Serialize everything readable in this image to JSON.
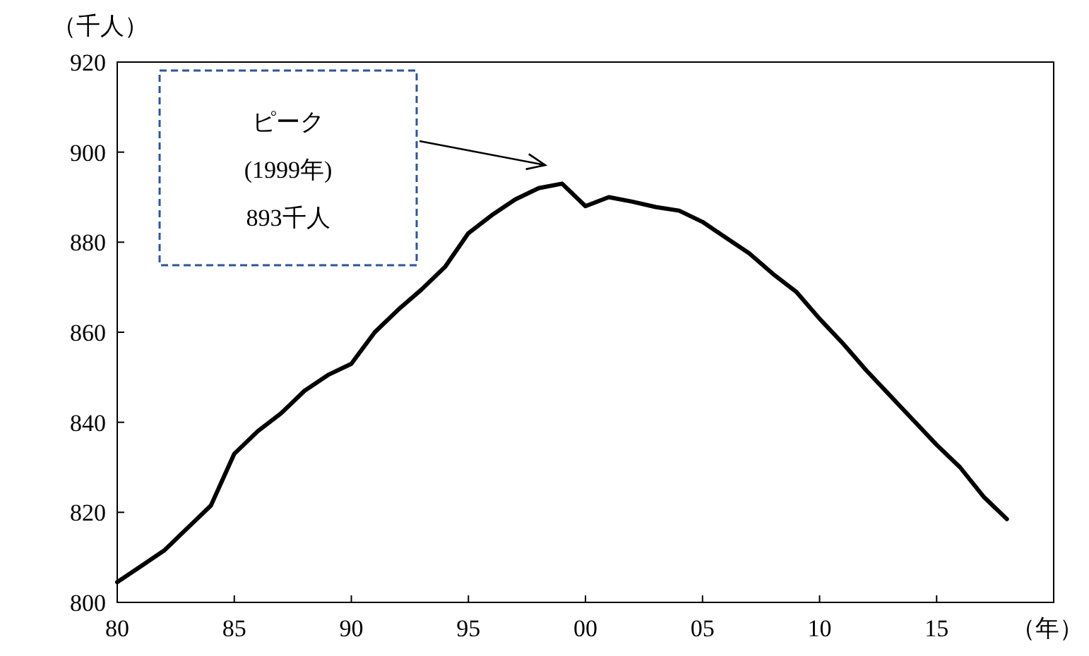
{
  "chart_data": {
    "type": "line",
    "ylabel": "（千人）",
    "xlabel": "（年）",
    "x": [
      1980,
      1981,
      1982,
      1983,
      1984,
      1985,
      1986,
      1987,
      1988,
      1989,
      1990,
      1991,
      1992,
      1993,
      1994,
      1995,
      1996,
      1997,
      1998,
      1999,
      2000,
      2001,
      2002,
      2003,
      2004,
      2005,
      2006,
      2007,
      2008,
      2009,
      2010,
      2011,
      2012,
      2013,
      2014,
      2015,
      2016,
      2017,
      2018
    ],
    "series": [
      {
        "color": "#000000",
        "values": [
          804.5,
          808,
          811.5,
          816.5,
          821.5,
          833,
          838,
          842,
          847,
          850.5,
          853,
          860,
          865,
          869.5,
          874.5,
          882,
          886,
          889.5,
          892,
          893,
          888,
          890,
          889,
          887.8,
          887,
          884.5,
          881,
          877.5,
          873,
          869,
          863,
          857.5,
          851.5,
          846,
          840.5,
          835,
          830,
          823.5,
          818.5
        ]
      }
    ],
    "xlim": [
      1980,
      2020
    ],
    "ylim": [
      800,
      920
    ],
    "xticks": [
      {
        "value": 1980,
        "label": "80"
      },
      {
        "value": 1985,
        "label": "85"
      },
      {
        "value": 1990,
        "label": "90"
      },
      {
        "value": 1995,
        "label": "95"
      },
      {
        "value": 2000,
        "label": "00"
      },
      {
        "value": 2005,
        "label": "05"
      },
      {
        "value": 2010,
        "label": "10"
      },
      {
        "value": 2015,
        "label": "15"
      }
    ],
    "yticks": [
      800,
      820,
      840,
      860,
      880,
      900,
      920
    ],
    "marker": "none",
    "line_style": "solid",
    "annotations": [
      "ピーク\n(1999年)\n893千人"
    ]
  }
}
